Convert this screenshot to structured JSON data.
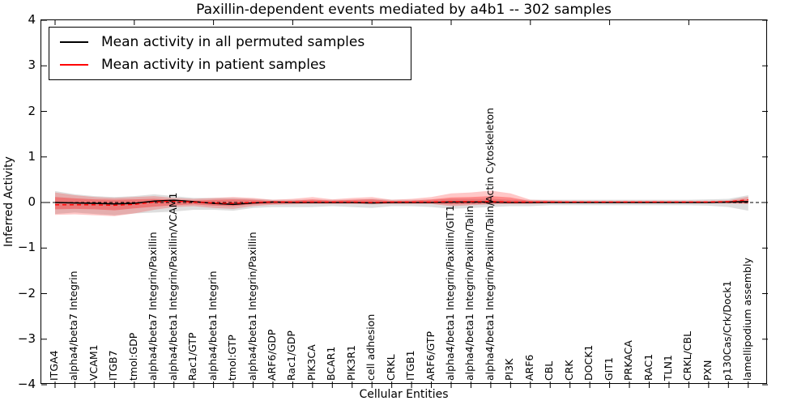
{
  "figure": {
    "title": "Paxillin-dependent events mediated by a4b1 -- 302 samples"
  },
  "legend": {
    "items": [
      {
        "label": "Mean activity in all permuted samples",
        "color": "#000000"
      },
      {
        "label": "Mean activity in patient samples",
        "color": "#ff0000"
      }
    ]
  },
  "axes": {
    "xlabel": "Cellular Entities",
    "ylabel": "Inferred Activity",
    "ytick_labels": [
      "4",
      "3",
      "2",
      "1",
      "0",
      "−1",
      "−2",
      "−3",
      "−4"
    ],
    "ytick_values": [
      4,
      3,
      2,
      1,
      0,
      -1,
      -2,
      -3,
      -4
    ]
  },
  "chart_data": {
    "type": "line",
    "title": "Paxillin-dependent events mediated by a4b1 -- 302 samples",
    "xlabel": "Cellular Entities",
    "ylabel": "Inferred Activity",
    "ylim": [
      -4,
      4
    ],
    "grid": false,
    "legend_position": "upper left",
    "zero_line": {
      "y": 0,
      "style": "dashed",
      "color": "#000000"
    },
    "categories": [
      "ITGA4",
      "alpha4/beta7 Integrin",
      "VCAM1",
      "ITGB7",
      "tmol:GDP",
      "alpha4/beta7 Integrin/Paxillin",
      "alpha4/beta1 Integrin/Paxillin/VCAM1",
      "Rac1/GTP",
      "alpha4/beta1 Integrin",
      "tmol:GTP",
      "alpha4/beta1 Integrin/Paxillin",
      "ARF6/GDP",
      "Rac1/GDP",
      "PIK3CA",
      "BCAR1",
      "PIK3R1",
      "cell adhesion",
      "CRKL",
      "ITGB1",
      "ARF6/GTP",
      "alpha4/beta1 Integrin/Paxillin/GIT1",
      "alpha4/beta1 Integrin/Paxillin/Talin",
      "alpha4/beta1 Integrin/Paxillin/Talin/Actin Cytoskeleton",
      "PI3K",
      "ARF6",
      "CBL",
      "CRK",
      "DOCK1",
      "GIT1",
      "PRKACA",
      "RAC1",
      "TLN1",
      "CRKL/CBL",
      "PXN",
      "p130Cas/Crk/Dock1",
      "lamellipodium assembly"
    ],
    "series": [
      {
        "name": "Mean activity in all permuted samples",
        "color": "#000000",
        "style": "solid",
        "width": 1.6,
        "values": [
          0.0,
          -0.01,
          -0.02,
          -0.03,
          -0.02,
          0.03,
          0.05,
          0.02,
          -0.02,
          -0.04,
          -0.01,
          0.01,
          0.0,
          0.0,
          0.0,
          0.0,
          -0.01,
          0.0,
          0.0,
          0.0,
          0.01,
          0.01,
          0.01,
          0.0,
          0.0,
          0.0,
          0.0,
          0.0,
          0.0,
          0.0,
          0.0,
          0.0,
          0.0,
          0.0,
          0.01,
          0.02
        ]
      },
      {
        "name": "Mean activity in patient samples",
        "color": "#ff0000",
        "style": "dashed",
        "width": 1.4,
        "values": [
          -0.05,
          -0.05,
          -0.05,
          -0.06,
          -0.04,
          0.01,
          0.03,
          0.01,
          -0.01,
          -0.02,
          0.0,
          0.01,
          0.01,
          0.01,
          0.01,
          0.01,
          0.0,
          0.01,
          0.01,
          0.01,
          0.02,
          0.02,
          0.02,
          0.01,
          0.01,
          0.01,
          0.01,
          0.01,
          0.01,
          0.01,
          0.01,
          0.01,
          0.01,
          0.01,
          0.02,
          0.06
        ]
      }
    ],
    "bands": [
      {
        "name": "permuted-samples-range",
        "color": "rgba(0,0,0,0.13)",
        "hi": [
          0.25,
          0.18,
          0.14,
          0.12,
          0.14,
          0.18,
          0.14,
          0.1,
          0.1,
          0.1,
          0.08,
          0.06,
          0.06,
          0.06,
          0.06,
          0.06,
          0.08,
          0.06,
          0.06,
          0.06,
          0.08,
          0.08,
          0.08,
          0.06,
          0.06,
          0.06,
          0.06,
          0.06,
          0.06,
          0.06,
          0.06,
          0.06,
          0.06,
          0.07,
          0.08,
          0.16
        ],
        "lo": [
          -0.25,
          -0.22,
          -0.25,
          -0.28,
          -0.24,
          -0.22,
          -0.2,
          -0.16,
          -0.16,
          -0.18,
          -0.12,
          -0.1,
          -0.1,
          -0.1,
          -0.08,
          -0.1,
          -0.12,
          -0.08,
          -0.08,
          -0.1,
          -0.14,
          -0.12,
          -0.1,
          -0.08,
          -0.08,
          -0.06,
          -0.06,
          -0.06,
          -0.06,
          -0.06,
          -0.06,
          -0.06,
          -0.06,
          -0.07,
          -0.1,
          -0.18
        ]
      },
      {
        "name": "patient-samples-range-outer",
        "color": "rgba(255,0,0,0.22)",
        "hi": [
          0.22,
          0.16,
          0.12,
          0.1,
          0.12,
          0.14,
          0.1,
          0.08,
          0.1,
          0.12,
          0.1,
          0.06,
          0.08,
          0.12,
          0.07,
          0.1,
          0.12,
          0.06,
          0.08,
          0.12,
          0.2,
          0.22,
          0.26,
          0.2,
          0.06,
          0.05,
          0.04,
          0.04,
          0.04,
          0.04,
          0.04,
          0.04,
          0.04,
          0.04,
          0.05,
          0.13
        ],
        "lo": [
          -0.27,
          -0.26,
          -0.28,
          -0.3,
          -0.24,
          -0.16,
          -0.1,
          -0.08,
          -0.12,
          -0.14,
          -0.08,
          -0.05,
          -0.04,
          -0.03,
          -0.03,
          -0.03,
          -0.04,
          -0.03,
          -0.03,
          -0.03,
          -0.08,
          -0.06,
          -0.04,
          -0.03,
          -0.03,
          -0.02,
          -0.02,
          -0.02,
          -0.02,
          -0.02,
          -0.02,
          -0.02,
          -0.02,
          -0.02,
          -0.02,
          -0.03
        ]
      },
      {
        "name": "patient-samples-range-inner",
        "color": "rgba(255,0,0,0.30)",
        "hi": [
          0.12,
          0.09,
          0.07,
          0.06,
          0.07,
          0.08,
          0.06,
          0.04,
          0.06,
          0.07,
          0.06,
          0.03,
          0.04,
          0.07,
          0.04,
          0.06,
          0.07,
          0.03,
          0.04,
          0.07,
          0.11,
          0.12,
          0.14,
          0.11,
          0.03,
          0.03,
          0.02,
          0.02,
          0.02,
          0.02,
          0.02,
          0.02,
          0.02,
          0.02,
          0.03,
          0.07
        ],
        "lo": [
          -0.15,
          -0.14,
          -0.15,
          -0.17,
          -0.13,
          -0.09,
          -0.06,
          -0.04,
          -0.07,
          -0.08,
          -0.04,
          -0.03,
          -0.02,
          -0.02,
          -0.02,
          -0.02,
          -0.02,
          -0.02,
          -0.02,
          -0.02,
          -0.04,
          -0.03,
          -0.02,
          -0.02,
          -0.02,
          -0.01,
          -0.01,
          -0.01,
          -0.01,
          -0.01,
          -0.01,
          -0.01,
          -0.01,
          -0.01,
          -0.01,
          -0.02
        ]
      }
    ]
  }
}
